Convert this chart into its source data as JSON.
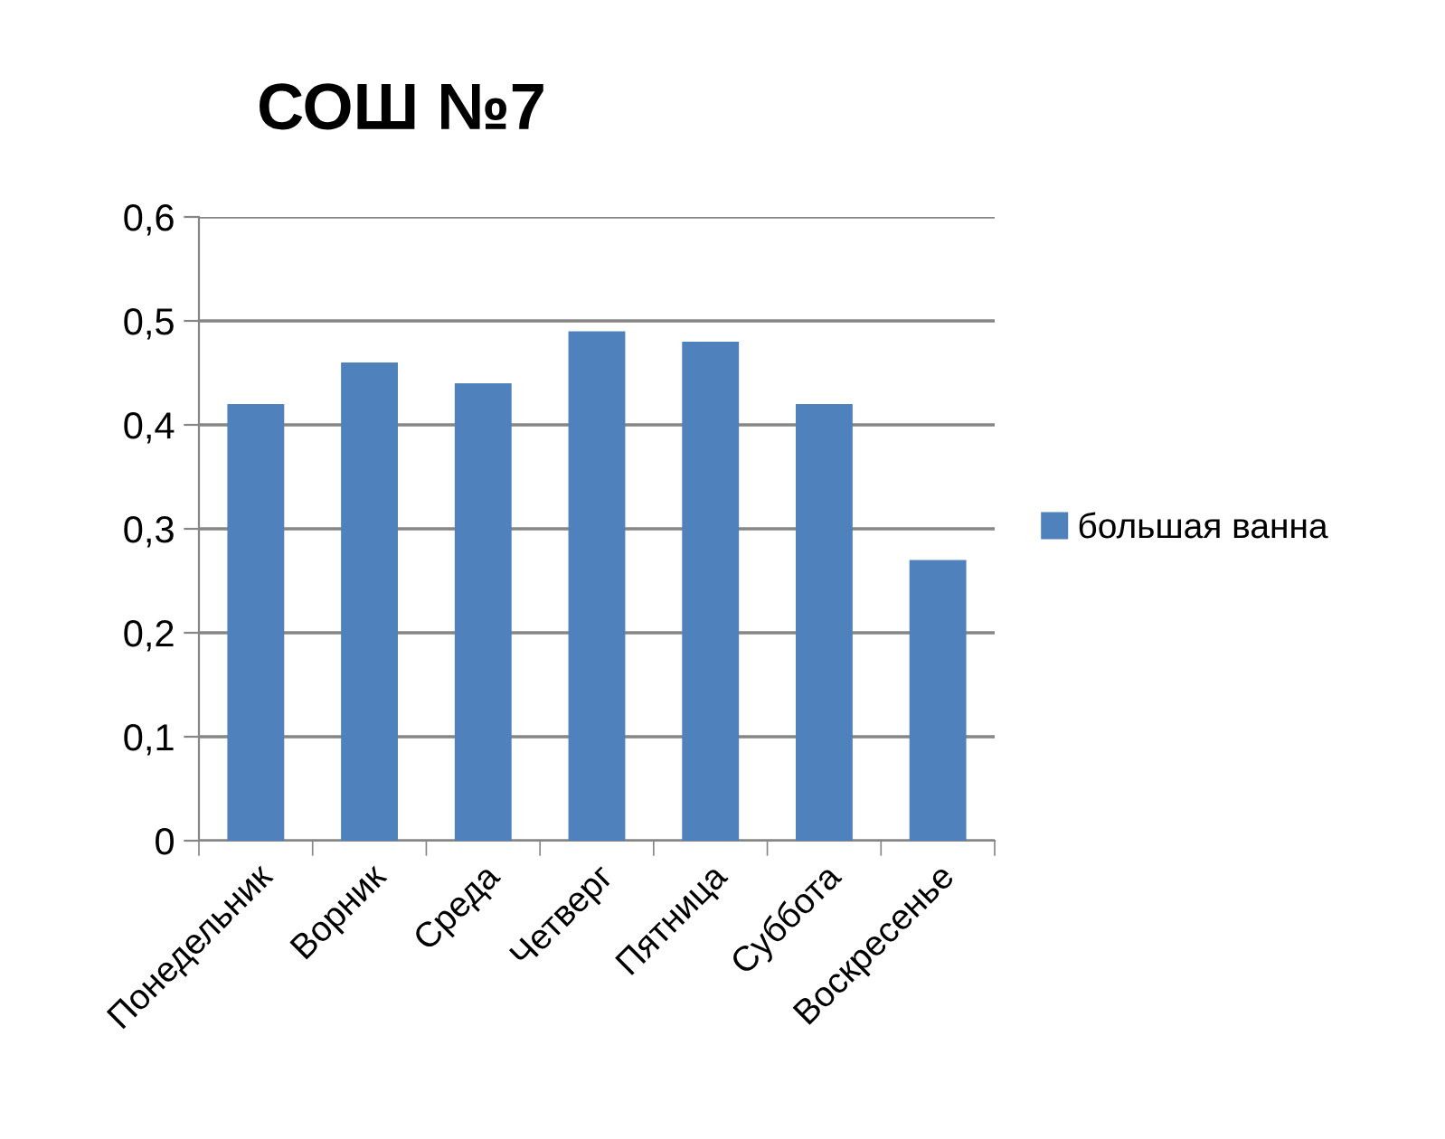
{
  "chart_data": {
    "type": "bar",
    "title": "СОШ №7",
    "categories": [
      "Понедельник",
      "Ворник",
      "Среда",
      "Четверг",
      "Пятница",
      "Суббота",
      "Воскресенье"
    ],
    "series": [
      {
        "name": "большая ванна",
        "color": "#4f81bd",
        "values": [
          0.42,
          0.46,
          0.44,
          0.49,
          0.48,
          0.42,
          0.27
        ]
      }
    ],
    "ylim": [
      0,
      0.6
    ],
    "yticks": [
      0,
      {
        "value": 0.1,
        "label": "0,1"
      },
      {
        "value": 0.2,
        "label": "0,2"
      },
      {
        "value": 0.3,
        "label": "0,3"
      },
      {
        "value": 0.4,
        "label": "0,4"
      },
      {
        "value": 0.5,
        "label": "0,5"
      },
      {
        "value": 0.6,
        "label": "0,6"
      }
    ],
    "grid": "y",
    "legend": "right"
  }
}
